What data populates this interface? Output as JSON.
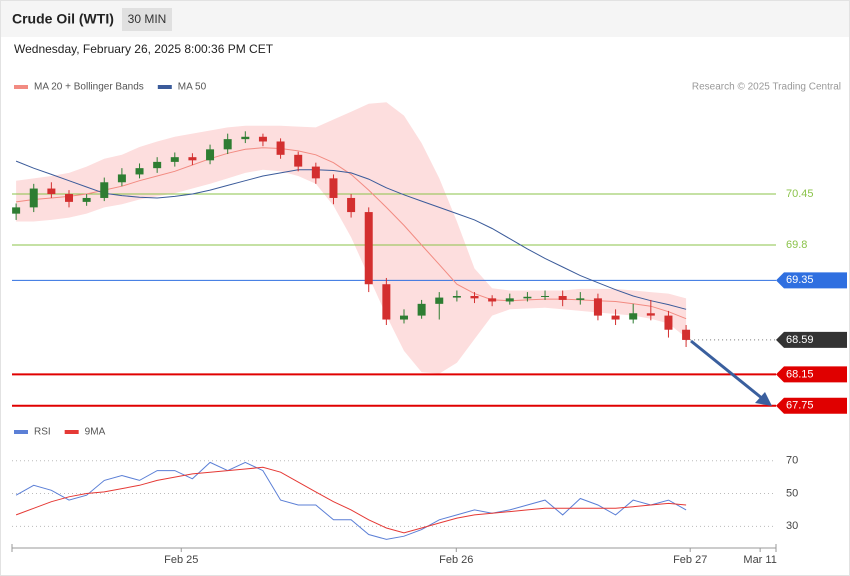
{
  "chart_data": [
    {
      "type": "candlestick",
      "title": "Crude Oil (WTI)",
      "timeframe": "30 MIN",
      "subtitle": "Wednesday, February 26, 2025 8:00:36 PM CET",
      "annotation": "Research © 2025 Trading Central",
      "xlim": [
        0,
        130
      ],
      "ylim": [
        67.62,
        71.7
      ],
      "up_color": "#2e7d32",
      "down_color": "#d32f2f",
      "x": [
        0.7,
        3.7,
        6.7,
        9.7,
        12.7,
        15.7,
        18.7,
        21.7,
        24.7,
        27.7,
        30.7,
        33.7,
        36.7,
        39.7,
        42.7,
        45.7,
        48.7,
        51.7,
        54.7,
        57.7,
        60.7,
        63.7,
        66.7,
        69.7,
        72.7,
        75.7,
        78.7,
        81.7,
        84.7,
        87.7,
        90.7,
        93.7,
        96.7,
        99.7,
        102.7,
        105.7,
        108.7,
        111.7,
        114.7
      ],
      "open": [
        70.2,
        70.28,
        70.52,
        70.45,
        70.35,
        70.4,
        70.6,
        70.7,
        70.78,
        70.86,
        70.92,
        70.88,
        71.02,
        71.15,
        71.18,
        71.12,
        70.95,
        70.8,
        70.65,
        70.4,
        70.22,
        69.3,
        68.85,
        68.9,
        69.05,
        69.13,
        69.15,
        69.12,
        69.08,
        69.12,
        69.14,
        69.15,
        69.1,
        69.12,
        68.9,
        68.85,
        68.93,
        68.9,
        68.72
      ],
      "high": [
        70.33,
        70.58,
        70.6,
        70.5,
        70.45,
        70.66,
        70.78,
        70.84,
        70.92,
        70.98,
        70.97,
        71.08,
        71.22,
        71.25,
        71.22,
        71.16,
        70.99,
        70.85,
        70.7,
        70.45,
        70.28,
        69.38,
        68.98,
        69.1,
        69.2,
        69.22,
        69.2,
        69.16,
        69.18,
        69.2,
        69.22,
        69.22,
        69.2,
        69.18,
        68.98,
        69.05,
        69.1,
        68.96,
        68.78
      ],
      "low": [
        70.12,
        70.22,
        70.4,
        70.28,
        70.3,
        70.36,
        70.55,
        70.65,
        70.72,
        70.8,
        70.82,
        70.83,
        70.96,
        71.1,
        71.06,
        70.9,
        70.74,
        70.58,
        70.32,
        70.15,
        69.2,
        68.78,
        68.8,
        68.86,
        68.85,
        69.08,
        69.06,
        69.02,
        69.04,
        69.08,
        69.1,
        69.02,
        69.04,
        68.84,
        68.78,
        68.8,
        68.84,
        68.62,
        68.5
      ],
      "close": [
        70.28,
        70.52,
        70.45,
        70.35,
        70.4,
        70.6,
        70.7,
        70.78,
        70.86,
        70.92,
        70.88,
        71.02,
        71.15,
        71.18,
        71.12,
        70.95,
        70.8,
        70.65,
        70.4,
        70.22,
        69.3,
        68.85,
        68.9,
        69.05,
        69.13,
        69.15,
        69.12,
        69.08,
        69.12,
        69.14,
        69.15,
        69.1,
        69.12,
        68.9,
        68.85,
        68.93,
        68.9,
        68.72,
        68.59
      ],
      "series": [
        {
          "name": "MA 20 + Bollinger Bands",
          "color": "#f28b82",
          "band_color": "#fddede",
          "values": [
            70.35,
            70.38,
            70.4,
            70.42,
            70.45,
            70.5,
            70.55,
            70.62,
            70.68,
            70.74,
            70.82,
            70.9,
            70.97,
            71.02,
            71.04,
            71.03,
            71.0,
            70.95,
            70.85,
            70.7,
            70.5,
            70.28,
            70.05,
            69.8,
            69.55,
            69.3,
            69.18,
            69.1,
            69.09,
            69.1,
            69.11,
            69.11,
            69.1,
            69.09,
            69.08,
            69.05,
            69.02,
            68.95,
            68.86
          ],
          "upper": [
            70.62,
            70.65,
            70.68,
            70.72,
            70.8,
            70.9,
            70.95,
            71.05,
            71.12,
            71.18,
            71.22,
            71.26,
            71.3,
            71.32,
            71.32,
            71.32,
            71.31,
            71.3,
            71.4,
            71.5,
            71.6,
            71.62,
            71.45,
            71.1,
            70.65,
            70.1,
            69.5,
            69.25,
            69.22,
            69.22,
            69.22,
            69.22,
            69.24,
            69.24,
            69.24,
            69.22,
            69.2,
            69.18,
            69.12
          ],
          "lower": [
            70.1,
            70.1,
            70.12,
            70.15,
            70.2,
            70.28,
            70.32,
            70.38,
            70.42,
            70.46,
            70.52,
            70.58,
            70.65,
            70.72,
            70.76,
            70.74,
            70.68,
            70.58,
            70.3,
            69.9,
            69.4,
            68.9,
            68.45,
            68.18,
            68.16,
            68.3,
            68.6,
            68.9,
            68.98,
            68.99,
            69.0,
            68.98,
            68.96,
            68.94,
            68.92,
            68.9,
            68.86,
            68.8,
            68.62
          ]
        },
        {
          "name": "MA 50",
          "color": "#3b5b9a",
          "values": [
            70.87,
            70.78,
            70.7,
            70.62,
            70.54,
            70.46,
            70.43,
            70.41,
            70.4,
            70.42,
            70.45,
            70.5,
            70.56,
            70.62,
            70.68,
            70.72,
            70.76,
            70.76,
            70.75,
            70.72,
            70.64,
            70.53,
            70.44,
            70.36,
            70.28,
            70.2,
            70.12,
            70.01,
            69.88,
            69.75,
            69.63,
            69.52,
            69.41,
            69.32,
            69.23,
            69.15,
            69.09,
            69.04,
            68.98
          ]
        }
      ],
      "levels": [
        {
          "value": 70.45,
          "color": "#8bc34a",
          "box": false,
          "dashed": false
        },
        {
          "value": 69.8,
          "color": "#8bc34a",
          "box": false,
          "dashed": false
        },
        {
          "value": 69.35,
          "color": "#2f6fe0",
          "box": true,
          "dashed": false
        },
        {
          "value": 68.59,
          "color": "#333333",
          "box": true,
          "dashed": true
        },
        {
          "value": 68.15,
          "color": "#e00000",
          "box": true,
          "dashed": false
        },
        {
          "value": 67.75,
          "color": "#e00000",
          "box": true,
          "dashed": false
        }
      ]
    },
    {
      "type": "line",
      "xlim": [
        0,
        130
      ],
      "ylim": [
        18,
        79
      ],
      "yticks": [
        30,
        50,
        70
      ],
      "xticks": [
        {
          "value": 28.8,
          "label": "Feb 25"
        },
        {
          "value": 75.6,
          "label": "Feb 26"
        },
        {
          "value": 115.4,
          "label": "Feb 27"
        },
        {
          "value": 127.3,
          "label": "Mar 11"
        }
      ],
      "x": [
        0.7,
        3.7,
        6.7,
        9.7,
        12.7,
        15.7,
        18.7,
        21.7,
        24.7,
        27.7,
        30.7,
        33.7,
        36.7,
        39.7,
        42.7,
        45.7,
        48.7,
        51.7,
        54.7,
        57.7,
        60.7,
        63.7,
        66.7,
        69.7,
        72.7,
        75.7,
        78.7,
        81.7,
        84.7,
        87.7,
        90.7,
        93.7,
        96.7,
        99.7,
        102.7,
        105.7,
        108.7,
        111.7,
        114.7
      ],
      "series": [
        {
          "name": "RSI",
          "color": "#5b7fd6",
          "values": [
            49,
            55,
            52,
            46,
            49,
            58,
            61,
            58,
            64,
            64,
            59,
            69,
            64,
            69,
            64,
            46,
            43,
            43,
            34,
            34,
            25,
            22,
            24,
            28,
            34,
            37,
            40,
            38,
            40,
            43,
            46,
            37,
            47,
            43,
            37,
            46,
            43,
            46,
            40
          ]
        },
        {
          "name": "9MA",
          "color": "#e53935",
          "values": [
            37,
            41,
            45,
            48,
            50,
            51,
            53,
            55,
            58,
            60,
            62,
            63,
            64,
            65,
            66,
            63,
            57,
            51,
            45,
            40,
            34,
            29,
            26,
            29,
            32,
            35,
            37,
            38,
            39,
            40,
            41,
            41,
            41,
            41,
            41,
            42,
            43,
            44,
            43
          ]
        }
      ]
    }
  ]
}
